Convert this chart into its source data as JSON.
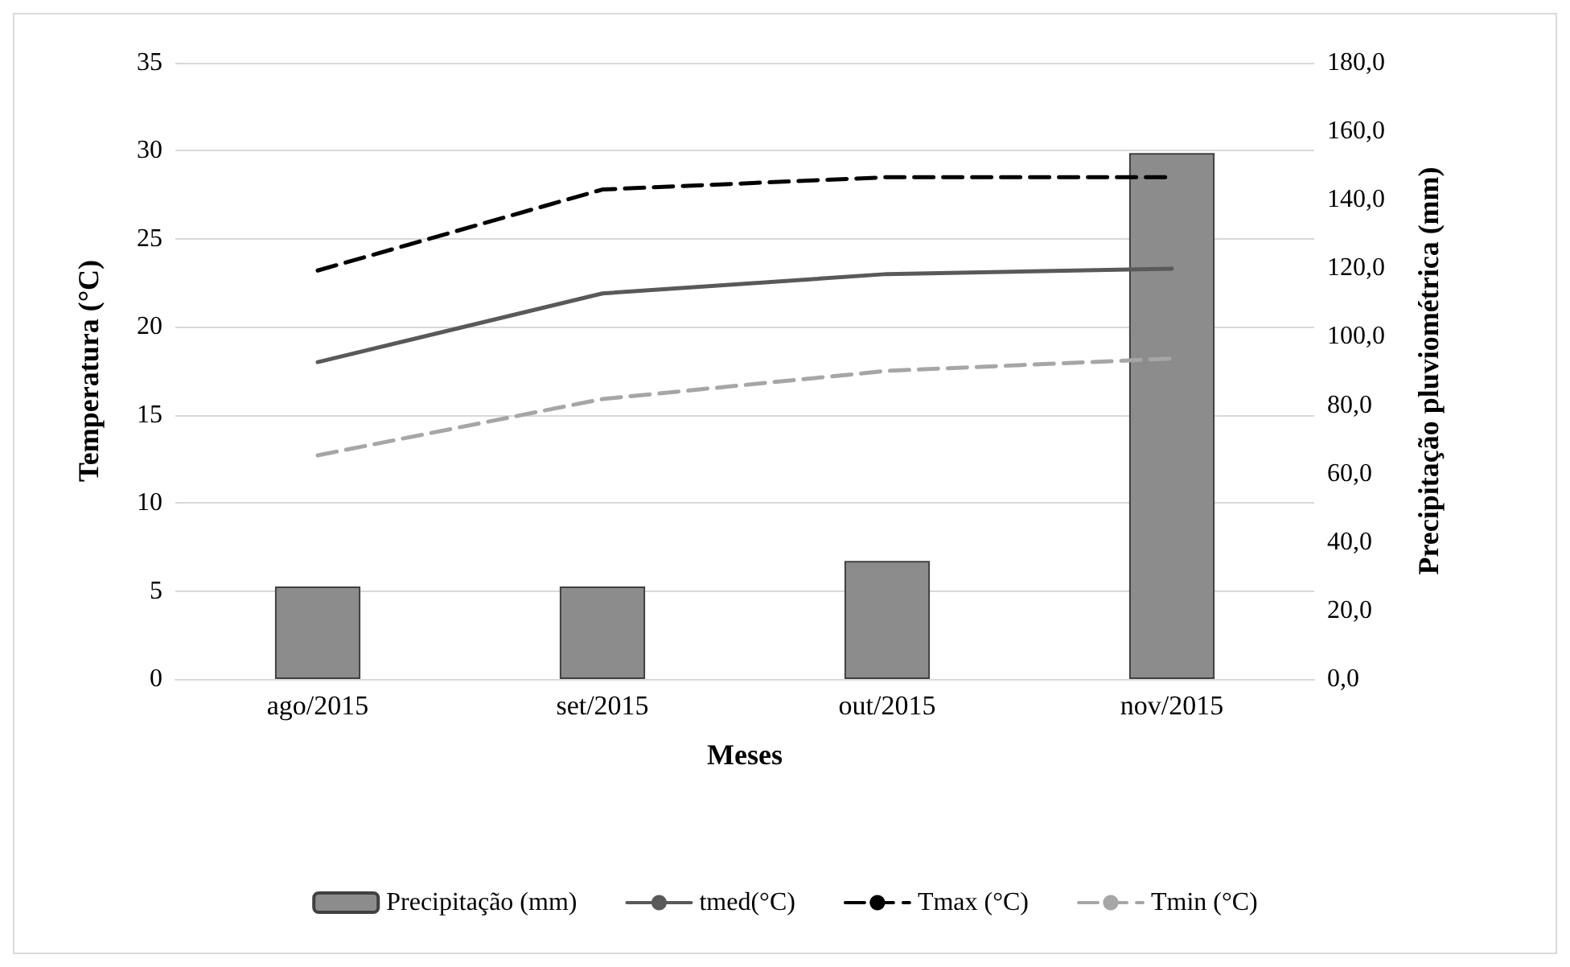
{
  "chart_data": {
    "type": "line",
    "xlabel": "Meses",
    "ylabel": "Temperatura (°C)",
    "y2label": "Precipitação pluviométrica (mm)",
    "categories": [
      "ago/2015",
      "set/2015",
      "out/2015",
      "nov/2015"
    ],
    "series": [
      {
        "name": "Precipitação (mm)",
        "type": "bar",
        "axis": "y2",
        "color": "#8c8c8c",
        "values": [
          27,
          27,
          34.5,
          153.6
        ]
      },
      {
        "name": "tmed(°C)",
        "color": "#595959",
        "line_style": "solid",
        "values": [
          18.0,
          21.9,
          23.0,
          23.3
        ]
      },
      {
        "name": "Tmax (°C)",
        "color": "#000000",
        "line_style": "dashed",
        "values": [
          23.2,
          27.8,
          28.5,
          28.5
        ]
      },
      {
        "name": "Tmin (°C)",
        "color": "#a6a6a6",
        "line_style": "dashed",
        "values": [
          12.7,
          15.9,
          17.5,
          18.2
        ]
      }
    ],
    "ylim": [
      0,
      35
    ],
    "yticks": [
      0,
      5,
      10,
      15,
      20,
      25,
      30,
      35
    ],
    "y2lim": [
      0,
      180
    ],
    "y2ticks": [
      {
        "value": 0,
        "label": "0,0"
      },
      {
        "value": 20,
        "label": "20,0"
      },
      {
        "value": 40,
        "label": "40,0"
      },
      {
        "value": 60,
        "label": "60,0"
      },
      {
        "value": 80,
        "label": "80,0"
      },
      {
        "value": 100,
        "label": "100,0"
      },
      {
        "value": 120,
        "label": "120,0"
      },
      {
        "value": 140,
        "label": "140,0"
      },
      {
        "value": 160,
        "label": "160,0"
      },
      {
        "value": 180,
        "label": "180,0"
      }
    ],
    "grid": "y",
    "legend": "bottom",
    "marker": "none"
  }
}
